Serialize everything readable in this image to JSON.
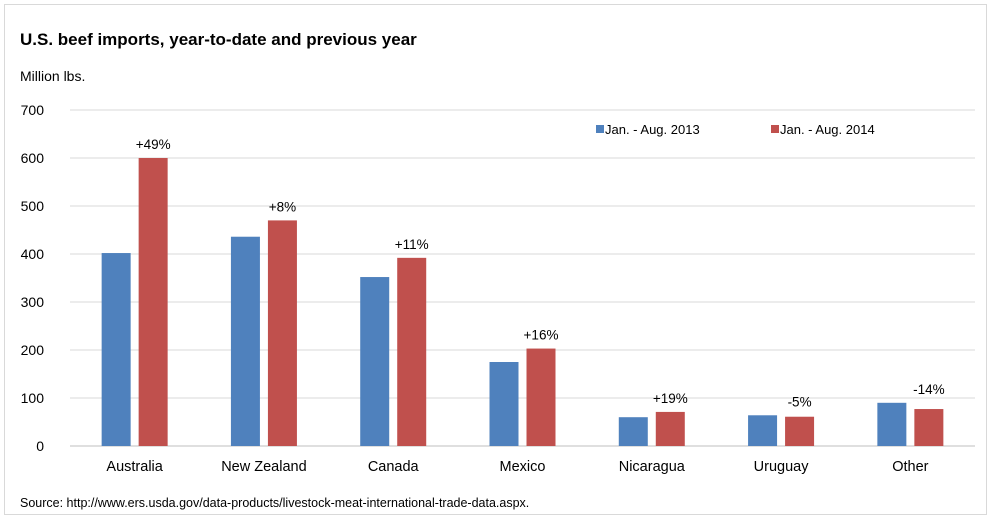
{
  "chart_data": {
    "type": "bar",
    "title": "U.S. beef imports, year-to-date and previous year",
    "ylabel": "Million lbs.",
    "xlabel": "",
    "ylim": [
      0,
      700
    ],
    "yticks": [
      0,
      100,
      200,
      300,
      400,
      500,
      600,
      700
    ],
    "grid": true,
    "legend_position": "top-right",
    "categories": [
      "Australia",
      "New Zealand",
      "Canada",
      "Mexico",
      "Nicaragua",
      "Uruguay",
      "Other"
    ],
    "series": [
      {
        "name": "Jan. - Aug. 2013",
        "color": "#4f81bd",
        "values": [
          402,
          436,
          352,
          175,
          60,
          64,
          90
        ]
      },
      {
        "name": "Jan. -  Aug. 2014",
        "color": "#c0504d",
        "values": [
          600,
          470,
          392,
          203,
          71,
          61,
          77
        ]
      }
    ],
    "annotations": [
      "+49%",
      "+8%",
      "+11%",
      "+16%",
      "+19%",
      "-5%",
      "-14%"
    ],
    "source": "Source: http://www.ers.usda.gov/data-products/livestock-meat-international-trade-data.aspx."
  }
}
